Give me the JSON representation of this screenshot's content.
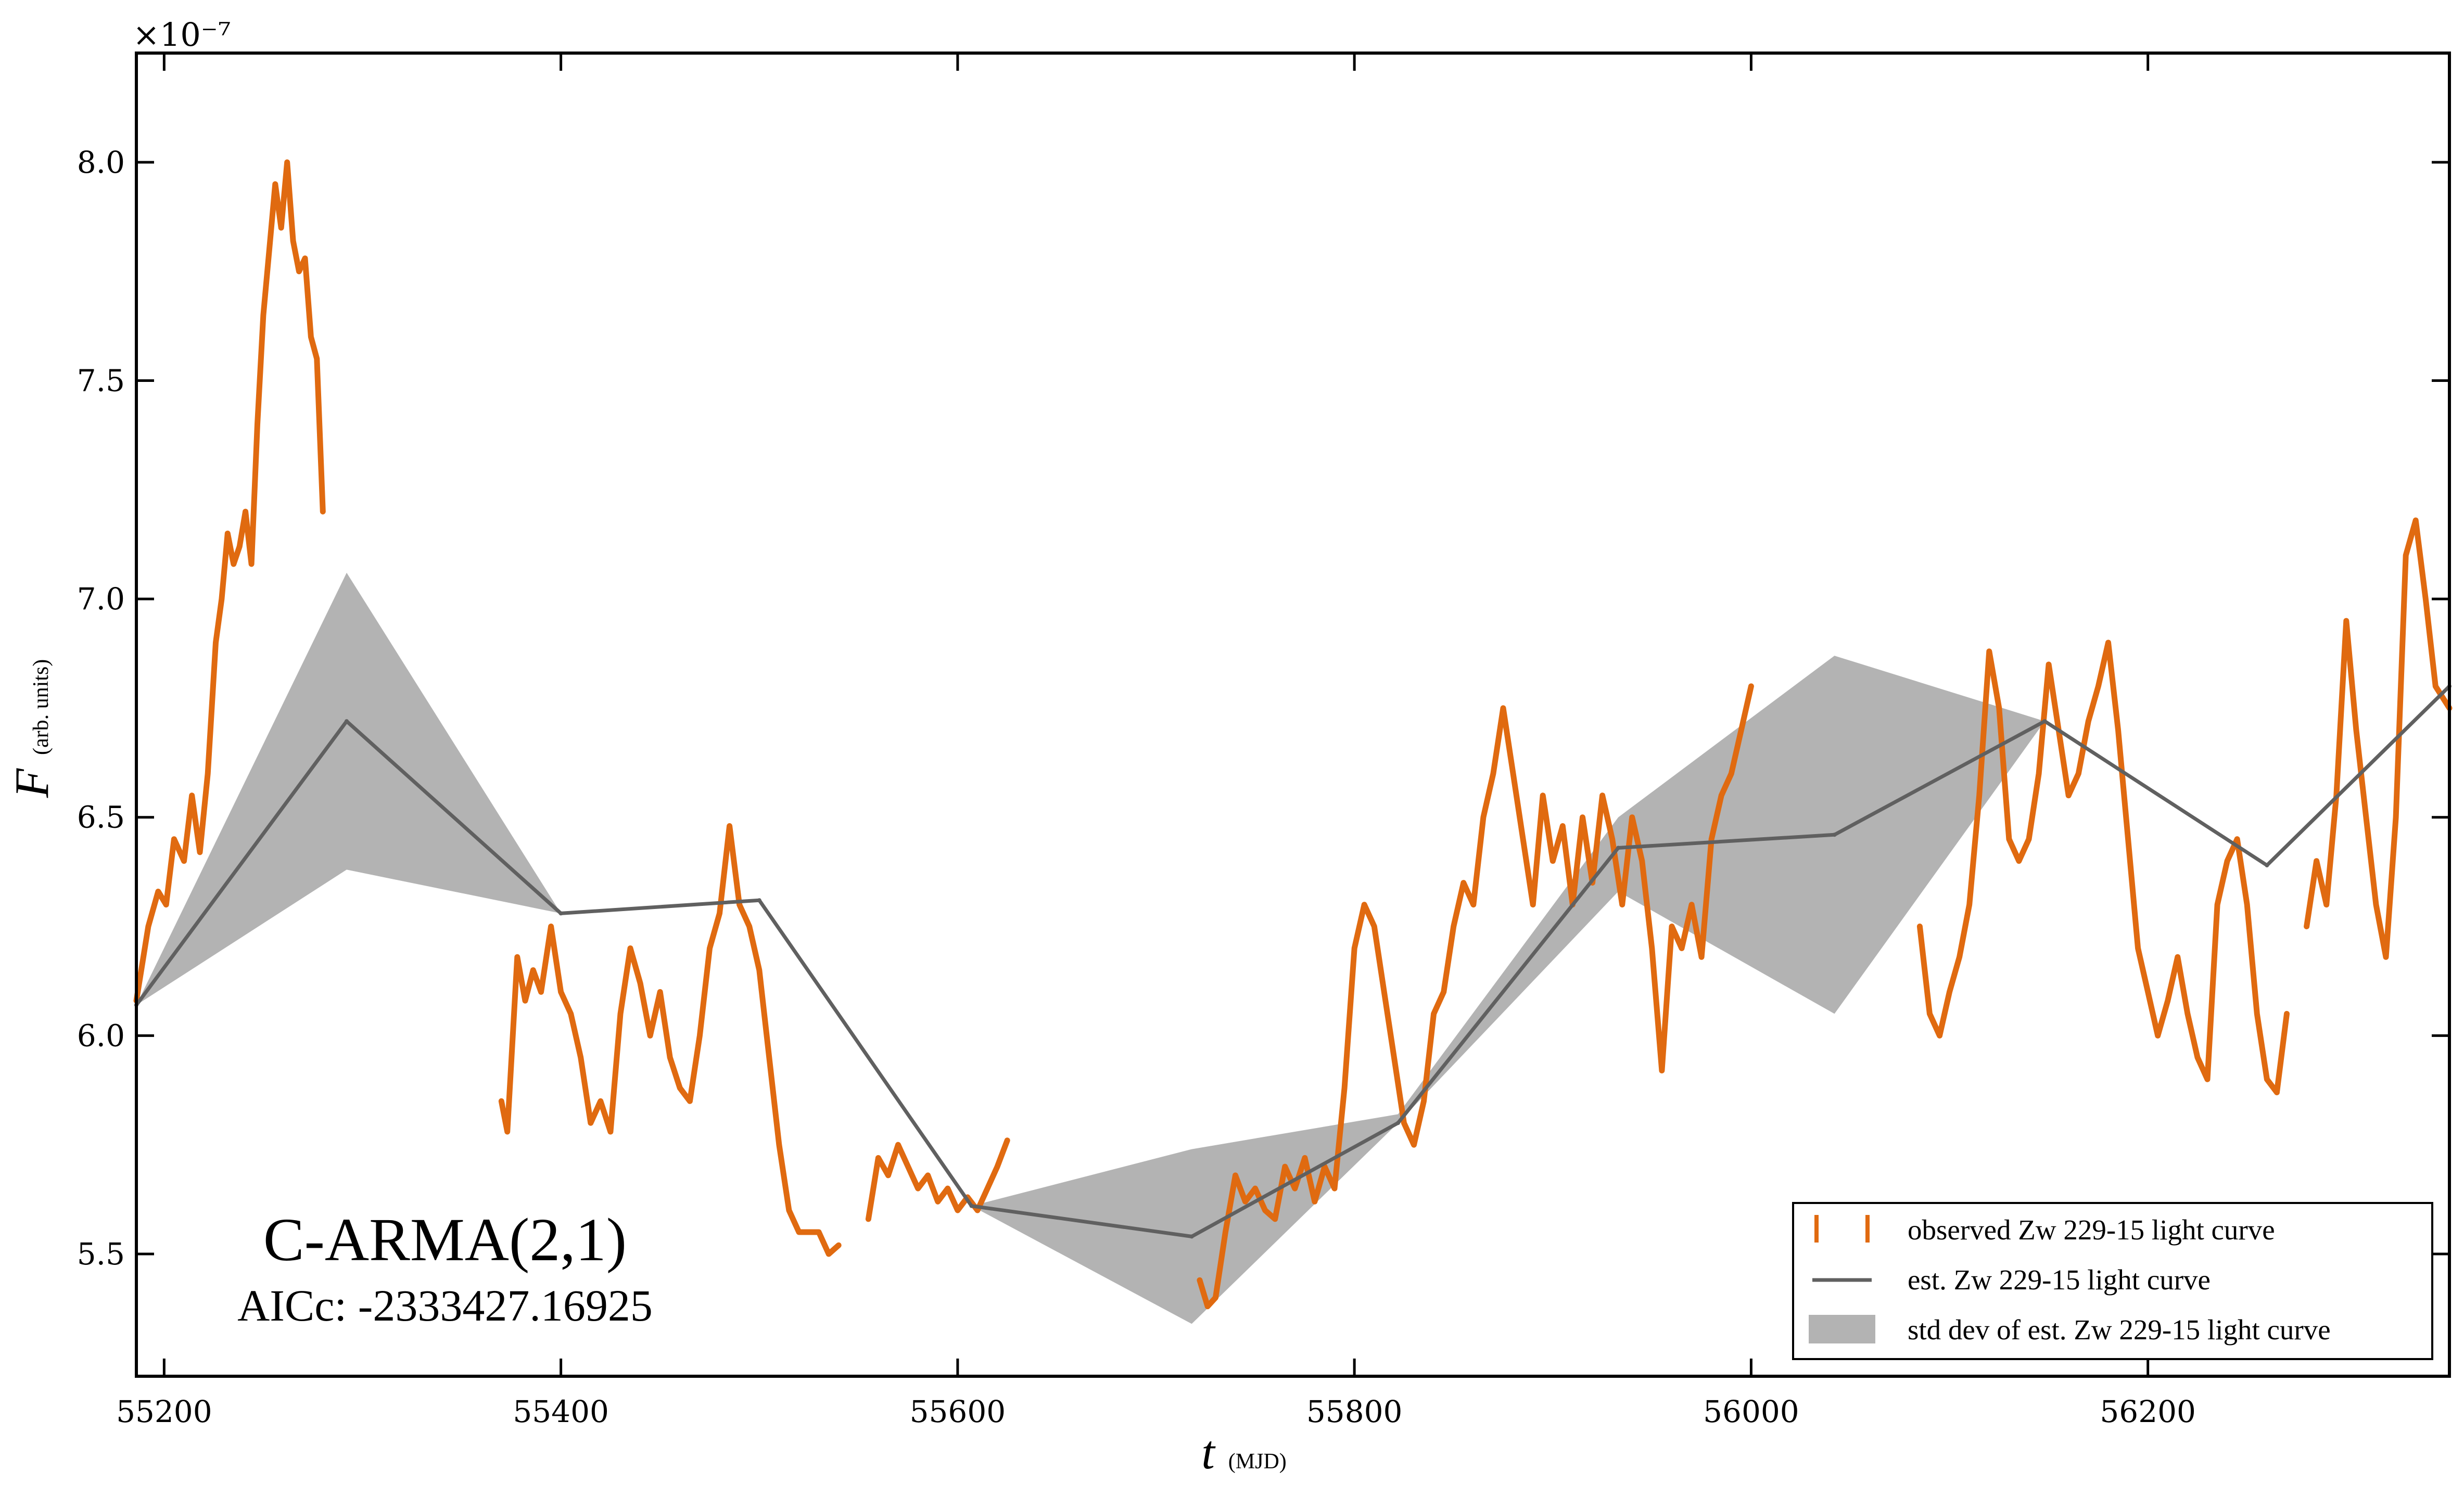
{
  "chart_data": {
    "type": "line",
    "title": "",
    "xlabel": "t",
    "xlabel_unit": "(MJD)",
    "ylabel": "F",
    "ylabel_unit": "(arb. units)",
    "y_multiplier": "×10⁻⁷",
    "xlim": [
      55186,
      56352
    ],
    "ylim": [
      5.22,
      8.25
    ],
    "xticks": [
      55200,
      55400,
      55600,
      55800,
      56000,
      56200
    ],
    "xtick_labels": [
      "55200",
      "55400",
      "55600",
      "55800",
      "56000",
      "56200"
    ],
    "yticks": [
      5.5,
      6.0,
      6.5,
      7.0,
      7.5,
      8.0
    ],
    "ytick_labels": [
      "5.5",
      "6.0",
      "6.5",
      "7.0",
      "7.5",
      "8.0"
    ],
    "grid": false,
    "legend_position": "bottom-right",
    "legend": [
      "observed Zw 229-15 light curve",
      "est. Zw 229-15 light curve",
      "std dev of est. Zw 229-15 light curve"
    ],
    "annotations": {
      "model": "C-ARMA(2,1)",
      "aicc": "AICc: -2333427.16925"
    },
    "colors": {
      "observed": "#e06a10",
      "estimate": "#606060",
      "band": "#b3b3b3"
    },
    "observed_segments": [
      [
        [
          55186,
          6.08
        ],
        [
          55192,
          6.25
        ],
        [
          55197,
          6.33
        ],
        [
          55201,
          6.3
        ],
        [
          55205,
          6.45
        ],
        [
          55210,
          6.4
        ],
        [
          55214,
          6.55
        ],
        [
          55218,
          6.42
        ],
        [
          55222,
          6.6
        ],
        [
          55226,
          6.9
        ],
        [
          55229,
          7.0
        ],
        [
          55232,
          7.15
        ],
        [
          55235,
          7.08
        ],
        [
          55238,
          7.12
        ],
        [
          55241,
          7.2
        ],
        [
          55244,
          7.08
        ],
        [
          55247,
          7.4
        ],
        [
          55250,
          7.65
        ],
        [
          55253,
          7.8
        ],
        [
          55256,
          7.95
        ],
        [
          55259,
          7.85
        ],
        [
          55262,
          8.0
        ],
        [
          55265,
          7.82
        ],
        [
          55268,
          7.75
        ],
        [
          55271,
          7.78
        ],
        [
          55274,
          7.6
        ],
        [
          55277,
          7.55
        ],
        [
          55280,
          7.2
        ]
      ],
      [
        [
          55370,
          5.85
        ],
        [
          55373,
          5.78
        ],
        [
          55378,
          6.18
        ],
        [
          55382,
          6.08
        ],
        [
          55386,
          6.15
        ],
        [
          55390,
          6.1
        ],
        [
          55395,
          6.25
        ],
        [
          55400,
          6.1
        ],
        [
          55405,
          6.05
        ],
        [
          55410,
          5.95
        ],
        [
          55415,
          5.8
        ],
        [
          55420,
          5.85
        ],
        [
          55425,
          5.78
        ],
        [
          55430,
          6.05
        ],
        [
          55435,
          6.2
        ],
        [
          55440,
          6.12
        ],
        [
          55445,
          6.0
        ],
        [
          55450,
          6.1
        ],
        [
          55455,
          5.95
        ],
        [
          55460,
          5.88
        ],
        [
          55465,
          5.85
        ],
        [
          55470,
          6.0
        ],
        [
          55475,
          6.2
        ],
        [
          55480,
          6.28
        ],
        [
          55485,
          6.48
        ],
        [
          55490,
          6.3
        ],
        [
          55495,
          6.25
        ],
        [
          55500,
          6.15
        ],
        [
          55505,
          5.95
        ],
        [
          55510,
          5.75
        ],
        [
          55515,
          5.6
        ],
        [
          55520,
          5.55
        ],
        [
          55525,
          5.55
        ],
        [
          55530,
          5.55
        ],
        [
          55535,
          5.5
        ],
        [
          55540,
          5.52
        ]
      ],
      [
        [
          55555,
          5.58
        ],
        [
          55560,
          5.72
        ],
        [
          55565,
          5.68
        ],
        [
          55570,
          5.75
        ],
        [
          55575,
          5.7
        ],
        [
          55580,
          5.65
        ],
        [
          55585,
          5.68
        ],
        [
          55590,
          5.62
        ],
        [
          55595,
          5.65
        ],
        [
          55600,
          5.6
        ],
        [
          55605,
          5.63
        ],
        [
          55610,
          5.6
        ],
        [
          55615,
          5.65
        ],
        [
          55620,
          5.7
        ],
        [
          55625,
          5.76
        ]
      ],
      [
        [
          55722,
          5.44
        ],
        [
          55726,
          5.38
        ],
        [
          55730,
          5.4
        ],
        [
          55735,
          5.55
        ],
        [
          55740,
          5.68
        ],
        [
          55745,
          5.62
        ],
        [
          55750,
          5.65
        ],
        [
          55755,
          5.6
        ],
        [
          55760,
          5.58
        ],
        [
          55765,
          5.7
        ],
        [
          55770,
          5.65
        ],
        [
          55775,
          5.72
        ],
        [
          55780,
          5.62
        ],
        [
          55785,
          5.7
        ],
        [
          55790,
          5.65
        ],
        [
          55795,
          5.88
        ],
        [
          55800,
          6.2
        ],
        [
          55805,
          6.3
        ],
        [
          55810,
          6.25
        ],
        [
          55815,
          6.1
        ],
        [
          55820,
          5.95
        ],
        [
          55825,
          5.8
        ],
        [
          55830,
          5.75
        ],
        [
          55835,
          5.85
        ],
        [
          55840,
          6.05
        ],
        [
          55845,
          6.1
        ],
        [
          55850,
          6.25
        ],
        [
          55855,
          6.35
        ],
        [
          55860,
          6.3
        ],
        [
          55865,
          6.5
        ],
        [
          55870,
          6.6
        ],
        [
          55875,
          6.75
        ],
        [
          55880,
          6.6
        ],
        [
          55885,
          6.45
        ],
        [
          55890,
          6.3
        ],
        [
          55895,
          6.55
        ],
        [
          55900,
          6.4
        ],
        [
          55905,
          6.48
        ],
        [
          55910,
          6.3
        ],
        [
          55915,
          6.5
        ],
        [
          55920,
          6.35
        ],
        [
          55925,
          6.55
        ],
        [
          55930,
          6.45
        ],
        [
          55935,
          6.3
        ],
        [
          55940,
          6.5
        ],
        [
          55945,
          6.4
        ],
        [
          55950,
          6.2
        ],
        [
          55955,
          5.92
        ],
        [
          55960,
          6.25
        ],
        [
          55965,
          6.2
        ],
        [
          55970,
          6.3
        ],
        [
          55975,
          6.18
        ],
        [
          55980,
          6.45
        ],
        [
          55985,
          6.55
        ],
        [
          55990,
          6.6
        ],
        [
          55995,
          6.7
        ],
        [
          56000,
          6.8
        ]
      ],
      [
        [
          56085,
          6.25
        ],
        [
          56090,
          6.05
        ],
        [
          56095,
          6.0
        ],
        [
          56100,
          6.1
        ],
        [
          56105,
          6.18
        ],
        [
          56110,
          6.3
        ],
        [
          56115,
          6.55
        ],
        [
          56120,
          6.88
        ],
        [
          56125,
          6.75
        ],
        [
          56130,
          6.45
        ],
        [
          56135,
          6.4
        ],
        [
          56140,
          6.45
        ],
        [
          56145,
          6.6
        ],
        [
          56150,
          6.85
        ],
        [
          56155,
          6.7
        ],
        [
          56160,
          6.55
        ],
        [
          56165,
          6.6
        ],
        [
          56170,
          6.72
        ],
        [
          56175,
          6.8
        ],
        [
          56180,
          6.9
        ],
        [
          56185,
          6.7
        ],
        [
          56190,
          6.45
        ],
        [
          56195,
          6.2
        ],
        [
          56200,
          6.1
        ],
        [
          56205,
          6.0
        ],
        [
          56210,
          6.08
        ],
        [
          56215,
          6.18
        ],
        [
          56220,
          6.05
        ],
        [
          56225,
          5.95
        ],
        [
          56230,
          5.9
        ],
        [
          56235,
          6.3
        ],
        [
          56240,
          6.4
        ],
        [
          56245,
          6.45
        ],
        [
          56250,
          6.3
        ],
        [
          56255,
          6.05
        ],
        [
          56260,
          5.9
        ],
        [
          56265,
          5.87
        ],
        [
          56270,
          6.05
        ]
      ],
      [
        [
          56280,
          6.25
        ],
        [
          56285,
          6.4
        ],
        [
          56290,
          6.3
        ],
        [
          56295,
          6.55
        ],
        [
          56300,
          6.95
        ],
        [
          56305,
          6.7
        ],
        [
          56310,
          6.5
        ],
        [
          56315,
          6.3
        ],
        [
          56320,
          6.18
        ],
        [
          56325,
          6.5
        ],
        [
          56330,
          7.1
        ],
        [
          56335,
          7.18
        ],
        [
          56340,
          7.0
        ],
        [
          56345,
          6.8
        ],
        [
          56352,
          6.75
        ]
      ]
    ],
    "estimate": {
      "x": [
        55186,
        55292,
        55400,
        55500,
        55607,
        55718,
        55822,
        55933,
        56042,
        56148,
        56260,
        56352
      ],
      "y": [
        6.07,
        6.72,
        6.28,
        6.31,
        5.61,
        5.54,
        5.8,
        6.43,
        6.46,
        6.72,
        6.39,
        6.8
      ],
      "upper": [
        6.07,
        7.06,
        6.28,
        6.31,
        5.61,
        5.74,
        5.82,
        6.5,
        6.87,
        6.72,
        6.39,
        6.8
      ],
      "lower": [
        6.07,
        6.38,
        6.28,
        6.31,
        5.61,
        5.34,
        5.8,
        6.33,
        6.05,
        6.72,
        6.39,
        6.8
      ]
    }
  }
}
